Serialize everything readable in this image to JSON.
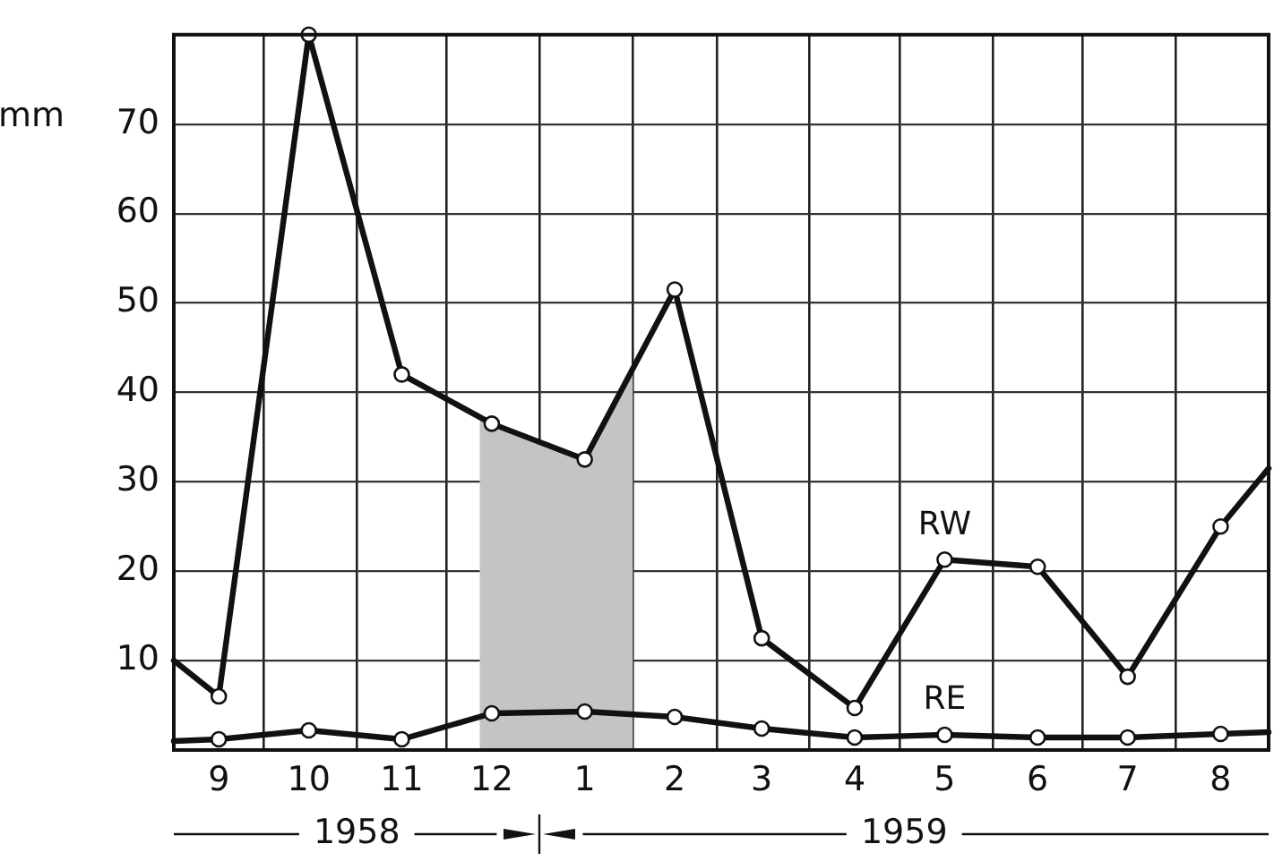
{
  "chart_data": {
    "type": "line",
    "ylabel": "mm",
    "x": [
      "1958-09-01",
      "1958-09-16",
      "1958-10-16",
      "1958-11-16",
      "1958-12-16",
      "1959-01-16",
      "1959-02-15",
      "1959-03-16",
      "1959-04-16",
      "1959-05-16",
      "1959-06-16",
      "1959-07-16",
      "1959-08-16",
      "1959-09-01"
    ],
    "xlim": [
      "1958-09-01",
      "1959-09-01"
    ],
    "xticks": [
      {
        "value": "1958-09-16",
        "label": "9"
      },
      {
        "value": "1958-10-01",
        "label": null
      },
      {
        "value": "1958-10-16",
        "label": "10"
      },
      {
        "value": "1958-11-01",
        "label": null
      },
      {
        "value": "1958-11-16",
        "label": "11"
      },
      {
        "value": "1958-12-01",
        "label": null
      },
      {
        "value": "1958-12-16",
        "label": "12"
      },
      {
        "value": "1959-01-01",
        "label": null
      },
      {
        "value": "1959-01-16",
        "label": "1"
      },
      {
        "value": "1959-02-01",
        "label": null
      },
      {
        "value": "1959-02-15",
        "label": "2"
      },
      {
        "value": "1959-03-01",
        "label": null
      },
      {
        "value": "1959-03-16",
        "label": "3"
      },
      {
        "value": "1959-04-01",
        "label": null
      },
      {
        "value": "1959-04-16",
        "label": "4"
      },
      {
        "value": "1959-05-01",
        "label": null
      },
      {
        "value": "1959-05-16",
        "label": "5"
      },
      {
        "value": "1959-06-01",
        "label": null
      },
      {
        "value": "1959-06-16",
        "label": "6"
      },
      {
        "value": "1959-07-01",
        "label": null
      },
      {
        "value": "1959-07-16",
        "label": "7"
      },
      {
        "value": "1959-08-01",
        "label": null
      },
      {
        "value": "1959-08-16",
        "label": "8"
      }
    ],
    "ylim": [
      0,
      80
    ],
    "yticks": [
      10,
      20,
      30,
      40,
      50,
      60,
      70
    ],
    "series": [
      {
        "name": "RW",
        "color": "#111111",
        "values": [
          10,
          6,
          80,
          42,
          36.5,
          32.5,
          51.5,
          12.5,
          4.7,
          21.3,
          20.5,
          8.2,
          25,
          31.5
        ]
      },
      {
        "name": "RE",
        "color": "#111111",
        "values": [
          1,
          1.2,
          2.2,
          1.2,
          4.1,
          4.3,
          3.7,
          2.4,
          1.4,
          1.7,
          1.4,
          1.4,
          1.8,
          2
        ]
      }
    ],
    "bands": [
      {
        "axis": "x",
        "from": "1958-12-12",
        "to": "1959-02-01",
        "color": "#c4c4c4"
      }
    ],
    "annotations": [
      "1958",
      "1959"
    ],
    "grid": true,
    "legend": false,
    "marker": "circle",
    "line_style": "solid"
  }
}
